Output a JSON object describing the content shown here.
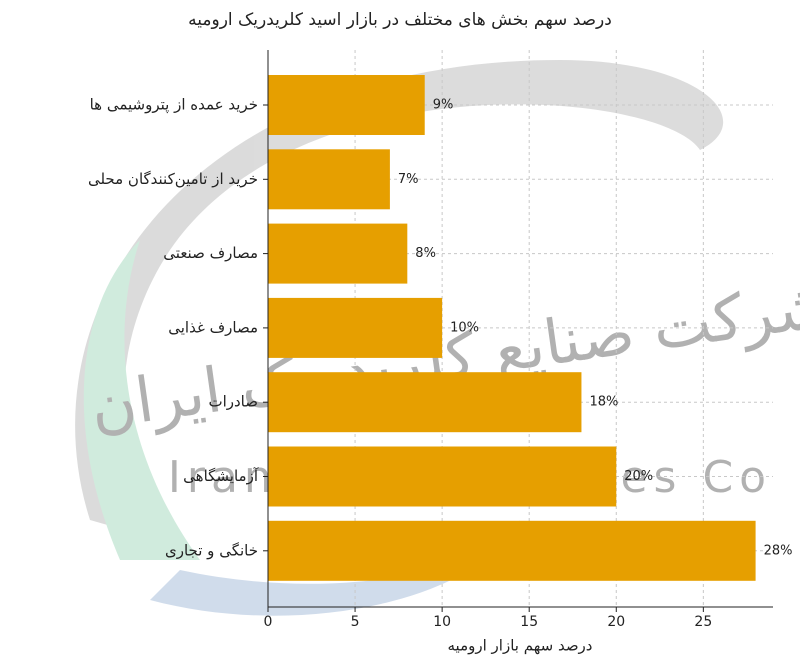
{
  "chart_data": {
    "type": "barh",
    "title": "درصد سهم بخش های مختلف در بازار اسید کلریدریک ارومیه",
    "xlabel": "درصد سهم بازار ارومیه",
    "categories": [
      "خرید عمده از پتروشیمی ها",
      "خرید از تامین‌کنندگان محلی",
      "مصارف صنعتی",
      "مصارف غذایی",
      "صادرات",
      "آزمایشگاهی",
      "خانگی و تجاری"
    ],
    "values": [
      9,
      7,
      8,
      10,
      18,
      20,
      28
    ],
    "value_labels": [
      "9%",
      "7%",
      "8%",
      "10%",
      "18%",
      "20%",
      "28%"
    ],
    "color": "#e69f00",
    "xlim": [
      0,
      29
    ],
    "xticks": [
      0,
      5,
      10,
      15,
      20,
      25
    ],
    "grid": true
  },
  "watermark": {
    "text_fa": "شرکت صنایع کلریدریک ایران",
    "text_en": "Iran Hcl Industries Co"
  }
}
